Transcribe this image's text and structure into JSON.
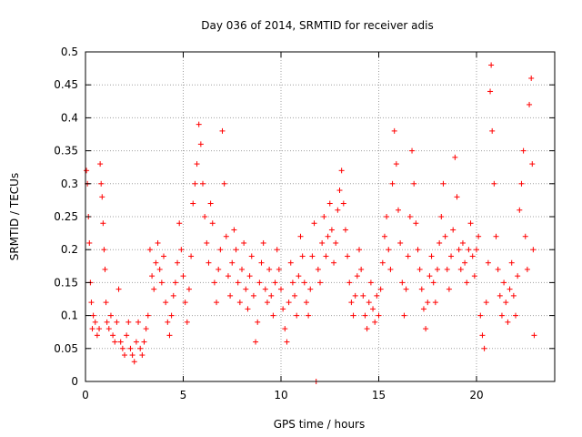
{
  "chart_data": {
    "type": "scatter",
    "title": "Day 036 of 2014, SRMTID for receiver adis",
    "xlabel": "GPS time / hours",
    "ylabel": "SRMTID / TECUs",
    "xlim": [
      0,
      24
    ],
    "ylim": [
      0,
      0.5
    ],
    "x_ticks": [
      0,
      5,
      10,
      15,
      20
    ],
    "x_tick_labels": [
      "0",
      "5",
      "10",
      "15",
      "20"
    ],
    "y_ticks": [
      0,
      0.05,
      0.1,
      0.15,
      0.2,
      0.25,
      0.3,
      0.35,
      0.4,
      0.45,
      0.5
    ],
    "y_tick_labels": [
      "0",
      "0.05",
      "0.1",
      "0.15",
      "0.2",
      "0.25",
      "0.3",
      "0.35",
      "0.4",
      "0.45",
      "0.5"
    ],
    "grid": true,
    "marker": "+",
    "color": "#ff0000",
    "series": [
      {
        "name": "SRMTID",
        "points": [
          [
            0.05,
            0.32
          ],
          [
            0.1,
            0.3
          ],
          [
            0.15,
            0.25
          ],
          [
            0.2,
            0.21
          ],
          [
            0.25,
            0.15
          ],
          [
            0.3,
            0.12
          ],
          [
            0.35,
            0.08
          ],
          [
            0.4,
            0.1
          ],
          [
            0.5,
            0.09
          ],
          [
            0.6,
            0.07
          ],
          [
            0.7,
            0.08
          ],
          [
            0.75,
            0.33
          ],
          [
            0.8,
            0.3
          ],
          [
            0.85,
            0.28
          ],
          [
            0.9,
            0.24
          ],
          [
            0.95,
            0.2
          ],
          [
            1.0,
            0.17
          ],
          [
            1.05,
            0.12
          ],
          [
            1.1,
            0.09
          ],
          [
            1.2,
            0.08
          ],
          [
            1.3,
            0.1
          ],
          [
            1.4,
            0.07
          ],
          [
            1.5,
            0.06
          ],
          [
            1.6,
            0.09
          ],
          [
            1.7,
            0.14
          ],
          [
            1.8,
            0.06
          ],
          [
            1.9,
            0.05
          ],
          [
            2.0,
            0.04
          ],
          [
            2.1,
            0.07
          ],
          [
            2.2,
            0.09
          ],
          [
            2.3,
            0.05
          ],
          [
            2.4,
            0.04
          ],
          [
            2.5,
            0.03
          ],
          [
            2.6,
            0.06
          ],
          [
            2.7,
            0.09
          ],
          [
            2.8,
            0.05
          ],
          [
            2.9,
            0.04
          ],
          [
            3.0,
            0.06
          ],
          [
            3.1,
            0.08
          ],
          [
            3.2,
            0.1
          ],
          [
            3.3,
            0.2
          ],
          [
            3.4,
            0.16
          ],
          [
            3.5,
            0.14
          ],
          [
            3.6,
            0.18
          ],
          [
            3.7,
            0.21
          ],
          [
            3.8,
            0.17
          ],
          [
            3.9,
            0.15
          ],
          [
            4.0,
            0.19
          ],
          [
            4.1,
            0.12
          ],
          [
            4.2,
            0.09
          ],
          [
            4.3,
            0.07
          ],
          [
            4.4,
            0.1
          ],
          [
            4.5,
            0.13
          ],
          [
            4.6,
            0.15
          ],
          [
            4.7,
            0.18
          ],
          [
            4.8,
            0.24
          ],
          [
            4.9,
            0.2
          ],
          [
            5.0,
            0.16
          ],
          [
            5.1,
            0.12
          ],
          [
            5.2,
            0.09
          ],
          [
            5.3,
            0.14
          ],
          [
            5.4,
            0.19
          ],
          [
            5.5,
            0.27
          ],
          [
            5.6,
            0.3
          ],
          [
            5.7,
            0.33
          ],
          [
            5.8,
            0.39
          ],
          [
            5.9,
            0.36
          ],
          [
            6.0,
            0.3
          ],
          [
            6.1,
            0.25
          ],
          [
            6.2,
            0.21
          ],
          [
            6.3,
            0.18
          ],
          [
            6.4,
            0.27
          ],
          [
            6.5,
            0.24
          ],
          [
            6.6,
            0.15
          ],
          [
            6.7,
            0.12
          ],
          [
            6.8,
            0.17
          ],
          [
            6.9,
            0.2
          ],
          [
            7.0,
            0.38
          ],
          [
            7.1,
            0.3
          ],
          [
            7.2,
            0.22
          ],
          [
            7.3,
            0.16
          ],
          [
            7.4,
            0.13
          ],
          [
            7.5,
            0.18
          ],
          [
            7.6,
            0.23
          ],
          [
            7.7,
            0.2
          ],
          [
            7.8,
            0.15
          ],
          [
            7.9,
            0.12
          ],
          [
            8.0,
            0.17
          ],
          [
            8.1,
            0.21
          ],
          [
            8.2,
            0.14
          ],
          [
            8.3,
            0.11
          ],
          [
            8.4,
            0.16
          ],
          [
            8.5,
            0.19
          ],
          [
            8.6,
            0.13
          ],
          [
            8.7,
            0.06
          ],
          [
            8.8,
            0.09
          ],
          [
            8.9,
            0.15
          ],
          [
            9.0,
            0.18
          ],
          [
            9.1,
            0.21
          ],
          [
            9.2,
            0.14
          ],
          [
            9.3,
            0.12
          ],
          [
            9.4,
            0.17
          ],
          [
            9.5,
            0.13
          ],
          [
            9.6,
            0.1
          ],
          [
            9.7,
            0.15
          ],
          [
            9.8,
            0.2
          ],
          [
            9.9,
            0.17
          ],
          [
            10.0,
            0.14
          ],
          [
            10.1,
            0.11
          ],
          [
            10.2,
            0.08
          ],
          [
            10.3,
            0.06
          ],
          [
            10.4,
            0.12
          ],
          [
            10.5,
            0.18
          ],
          [
            10.6,
            0.15
          ],
          [
            10.7,
            0.13
          ],
          [
            10.8,
            0.1
          ],
          [
            10.9,
            0.16
          ],
          [
            11.0,
            0.22
          ],
          [
            11.1,
            0.19
          ],
          [
            11.2,
            0.15
          ],
          [
            11.3,
            0.12
          ],
          [
            11.4,
            0.1
          ],
          [
            11.5,
            0.14
          ],
          [
            11.6,
            0.19
          ],
          [
            11.7,
            0.24
          ],
          [
            11.8,
            0.0
          ],
          [
            11.9,
            0.17
          ],
          [
            12.0,
            0.15
          ],
          [
            12.1,
            0.21
          ],
          [
            12.2,
            0.25
          ],
          [
            12.3,
            0.19
          ],
          [
            12.4,
            0.22
          ],
          [
            12.5,
            0.27
          ],
          [
            12.6,
            0.23
          ],
          [
            12.7,
            0.18
          ],
          [
            12.8,
            0.21
          ],
          [
            12.9,
            0.26
          ],
          [
            13.0,
            0.29
          ],
          [
            13.1,
            0.32
          ],
          [
            13.2,
            0.27
          ],
          [
            13.3,
            0.23
          ],
          [
            13.4,
            0.19
          ],
          [
            13.5,
            0.15
          ],
          [
            13.6,
            0.12
          ],
          [
            13.7,
            0.1
          ],
          [
            13.8,
            0.13
          ],
          [
            13.9,
            0.16
          ],
          [
            14.0,
            0.2
          ],
          [
            14.1,
            0.17
          ],
          [
            14.2,
            0.13
          ],
          [
            14.3,
            0.1
          ],
          [
            14.4,
            0.08
          ],
          [
            14.5,
            0.12
          ],
          [
            14.6,
            0.15
          ],
          [
            14.7,
            0.11
          ],
          [
            14.8,
            0.09
          ],
          [
            14.9,
            0.13
          ],
          [
            15.0,
            0.1
          ],
          [
            15.1,
            0.14
          ],
          [
            15.2,
            0.18
          ],
          [
            15.3,
            0.22
          ],
          [
            15.4,
            0.25
          ],
          [
            15.5,
            0.2
          ],
          [
            15.6,
            0.17
          ],
          [
            15.7,
            0.3
          ],
          [
            15.8,
            0.38
          ],
          [
            15.9,
            0.33
          ],
          [
            16.0,
            0.26
          ],
          [
            16.1,
            0.21
          ],
          [
            16.2,
            0.15
          ],
          [
            16.3,
            0.1
          ],
          [
            16.4,
            0.14
          ],
          [
            16.5,
            0.19
          ],
          [
            16.6,
            0.25
          ],
          [
            16.7,
            0.35
          ],
          [
            16.8,
            0.3
          ],
          [
            16.9,
            0.24
          ],
          [
            17.0,
            0.2
          ],
          [
            17.1,
            0.17
          ],
          [
            17.2,
            0.14
          ],
          [
            17.3,
            0.11
          ],
          [
            17.4,
            0.08
          ],
          [
            17.5,
            0.12
          ],
          [
            17.6,
            0.16
          ],
          [
            17.7,
            0.19
          ],
          [
            17.8,
            0.15
          ],
          [
            17.9,
            0.12
          ],
          [
            18.0,
            0.17
          ],
          [
            18.1,
            0.21
          ],
          [
            18.2,
            0.25
          ],
          [
            18.3,
            0.3
          ],
          [
            18.4,
            0.22
          ],
          [
            18.5,
            0.17
          ],
          [
            18.6,
            0.14
          ],
          [
            18.7,
            0.19
          ],
          [
            18.8,
            0.23
          ],
          [
            18.9,
            0.34
          ],
          [
            19.0,
            0.28
          ],
          [
            19.1,
            0.2
          ],
          [
            19.2,
            0.17
          ],
          [
            19.3,
            0.21
          ],
          [
            19.4,
            0.18
          ],
          [
            19.5,
            0.15
          ],
          [
            19.6,
            0.2
          ],
          [
            19.7,
            0.24
          ],
          [
            19.8,
            0.19
          ],
          [
            19.9,
            0.16
          ],
          [
            20.0,
            0.2
          ],
          [
            20.1,
            0.22
          ],
          [
            20.2,
            0.1
          ],
          [
            20.3,
            0.07
          ],
          [
            20.4,
            0.05
          ],
          [
            20.5,
            0.12
          ],
          [
            20.6,
            0.18
          ],
          [
            20.7,
            0.44
          ],
          [
            20.75,
            0.48
          ],
          [
            20.8,
            0.38
          ],
          [
            20.9,
            0.3
          ],
          [
            21.0,
            0.22
          ],
          [
            21.1,
            0.17
          ],
          [
            21.2,
            0.13
          ],
          [
            21.3,
            0.1
          ],
          [
            21.4,
            0.15
          ],
          [
            21.5,
            0.12
          ],
          [
            21.6,
            0.09
          ],
          [
            21.7,
            0.14
          ],
          [
            21.8,
            0.18
          ],
          [
            21.9,
            0.13
          ],
          [
            22.0,
            0.1
          ],
          [
            22.1,
            0.16
          ],
          [
            22.2,
            0.26
          ],
          [
            22.3,
            0.3
          ],
          [
            22.4,
            0.35
          ],
          [
            22.5,
            0.22
          ],
          [
            22.6,
            0.17
          ],
          [
            22.7,
            0.42
          ],
          [
            22.8,
            0.46
          ],
          [
            22.85,
            0.33
          ],
          [
            22.9,
            0.2
          ],
          [
            22.95,
            0.07
          ]
        ]
      }
    ]
  }
}
